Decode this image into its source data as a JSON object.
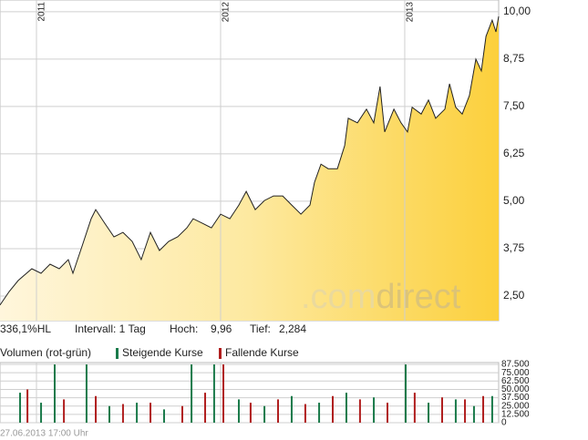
{
  "chart_data": {
    "type": "area",
    "x": [
      2010.802,
      2010.852,
      2010.901,
      2010.975,
      2011.025,
      2011.074,
      2011.124,
      2011.173,
      2011.198,
      2011.248,
      2011.297,
      2011.322,
      2011.371,
      2011.421,
      2011.47,
      2011.52,
      2011.569,
      2011.619,
      2011.668,
      2011.718,
      2011.767,
      2011.817,
      2011.851,
      2011.901,
      2011.95,
      2012.0,
      2012.05,
      2012.099,
      2012.139,
      2012.188,
      2012.238,
      2012.287,
      2012.337,
      2012.386,
      2012.436,
      2012.485,
      2012.51,
      2012.545,
      2012.584,
      2012.634,
      2012.674,
      2012.693,
      2012.743,
      2012.792,
      2012.832,
      2012.866,
      2012.891,
      2012.941,
      2012.98,
      2013.015,
      2013.04,
      2013.089,
      2013.129,
      2013.168,
      2013.218,
      2013.243,
      2013.277,
      2013.312,
      2013.351,
      2013.386,
      2013.416,
      2013.441,
      2013.475,
      2013.495,
      2013.51
    ],
    "values": [
      2.26,
      2.62,
      2.91,
      3.22,
      3.1,
      3.34,
      3.22,
      3.46,
      3.1,
      3.82,
      4.54,
      4.78,
      4.42,
      4.06,
      4.18,
      3.94,
      3.46,
      4.18,
      3.7,
      3.94,
      4.06,
      4.3,
      4.54,
      4.42,
      4.3,
      4.66,
      4.54,
      4.9,
      5.26,
      4.78,
      5.02,
      5.14,
      5.14,
      4.9,
      4.66,
      4.9,
      5.5,
      5.98,
      5.86,
      5.86,
      6.47,
      7.19,
      7.07,
      7.43,
      7.07,
      8.03,
      6.83,
      7.43,
      7.07,
      6.83,
      7.48,
      7.3,
      7.67,
      7.19,
      7.43,
      8.1,
      7.48,
      7.3,
      7.79,
      8.75,
      8.44,
      9.35,
      9.78,
      9.47,
      9.88
    ],
    "color": "#222222",
    "xlim": [
      2010.802,
      2013.51
    ],
    "xticks": [
      {
        "value": 2011,
        "label": "2011"
      },
      {
        "value": 2012,
        "label": "2012"
      },
      {
        "value": 2013,
        "label": "2013"
      }
    ],
    "ylim": [
      1.85,
      10.31
    ],
    "yticks": [
      {
        "value": 2.5,
        "label": "2,50"
      },
      {
        "value": 3.75,
        "label": "3,75"
      },
      {
        "value": 5,
        "label": "5,00"
      },
      {
        "value": 6.25,
        "label": "6,25"
      },
      {
        "value": 7.5,
        "label": "7,50"
      },
      {
        "value": 8.75,
        "label": "8,75"
      },
      {
        "value": 10,
        "label": "10,00"
      }
    ],
    "grid": true,
    "watermark": [
      ".com",
      "direct"
    ],
    "info": {
      "change": "336,1%HL",
      "interval": "Intervall: 1 Tag",
      "high_label": "Hoch:",
      "high": "9,96",
      "low_label": "Tief:",
      "low": "2,284"
    },
    "volume": {
      "title": "Volumen (rot-grün)",
      "ylim": [
        0,
        90000
      ],
      "yticks": [
        0,
        {
          "value": 12500,
          "label": "12.500"
        },
        {
          "value": 25000,
          "label": "25.000"
        },
        {
          "value": 37500,
          "label": "37.500"
        },
        {
          "value": 50000,
          "label": "50.000"
        },
        {
          "value": 62500,
          "label": "62.500"
        },
        {
          "value": 75000,
          "label": "75.000"
        },
        {
          "value": 87500,
          "label": "87.500"
        }
      ],
      "series": [
        {
          "name": "Steigende Kurse",
          "color": "#1a7a4a",
          "x": [
            2010.911,
            2011.025,
            2011.099,
            2011.272,
            2011.396,
            2011.545,
            2011.693,
            2011.842,
            2011.965,
            2012.099,
            2012.238,
            2012.386,
            2012.535,
            2012.683,
            2012.832,
            2013.005,
            2013.129,
            2013.277,
            2013.376,
            2013.475
          ],
          "values": [
            45000,
            30000,
            87500,
            87500,
            25000,
            30000,
            20000,
            87500,
            87500,
            35000,
            25000,
            40000,
            30000,
            45000,
            38000,
            87500,
            30000,
            35000,
            25000,
            40000
          ]
        },
        {
          "name": "Fallende Kurse",
          "color": "#b01e1e",
          "x": [
            2010.951,
            2011.149,
            2011.322,
            2011.47,
            2011.619,
            2011.792,
            2011.916,
            2012.015,
            2012.163,
            2012.312,
            2012.46,
            2012.609,
            2012.757,
            2012.906,
            2013.054,
            2013.203,
            2013.327,
            2013.426
          ],
          "values": [
            50000,
            35000,
            40000,
            28000,
            30000,
            25000,
            45000,
            87500,
            30000,
            35000,
            28000,
            40000,
            35000,
            30000,
            45000,
            38000,
            35000,
            40000
          ]
        }
      ]
    },
    "footer": "27.06.2013 17:00 Uhr"
  }
}
